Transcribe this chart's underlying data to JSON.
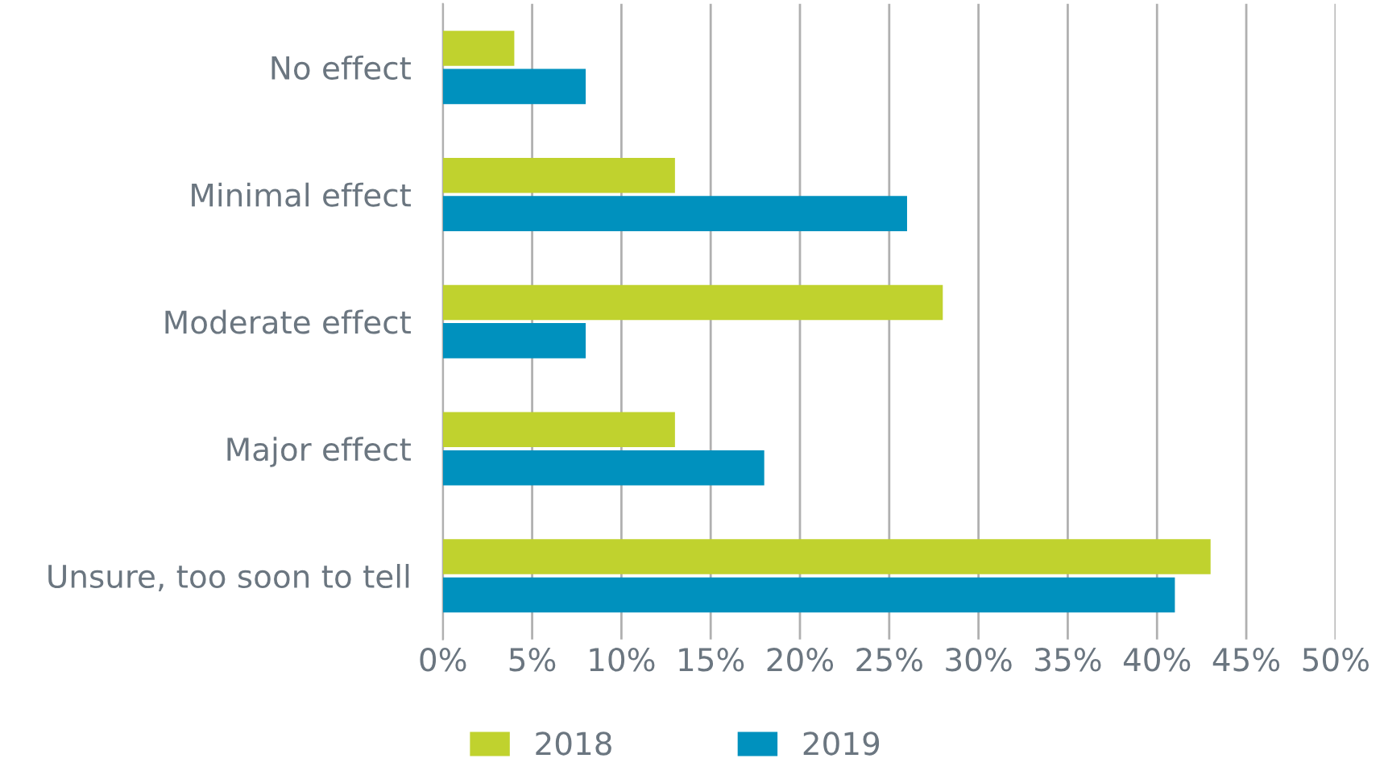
{
  "chart_data": {
    "type": "bar",
    "orientation": "horizontal",
    "categories": [
      "No effect",
      "Minimal effect",
      "Moderate effect",
      "Major effect",
      "Unsure, too soon to tell"
    ],
    "series": [
      {
        "name": "2018",
        "color": "#c0d22e",
        "values": [
          4,
          13,
          28,
          13,
          43
        ]
      },
      {
        "name": "2019",
        "color": "#0091be",
        "values": [
          8,
          26,
          8,
          18,
          41
        ]
      }
    ],
    "xlim": [
      0,
      50
    ],
    "xticks": [
      {
        "value": 0,
        "label": "0%"
      },
      {
        "value": 5,
        "label": "5%"
      },
      {
        "value": 10,
        "label": "10%"
      },
      {
        "value": 15,
        "label": "15%"
      },
      {
        "value": 20,
        "label": "20%"
      },
      {
        "value": 25,
        "label": "25%"
      },
      {
        "value": 30,
        "label": "30%"
      },
      {
        "value": 35,
        "label": "35%"
      },
      {
        "value": 40,
        "label": "40%"
      },
      {
        "value": 45,
        "label": "45%"
      },
      {
        "value": 50,
        "label": "50%"
      }
    ],
    "grid": "x",
    "legend": "bottom"
  }
}
